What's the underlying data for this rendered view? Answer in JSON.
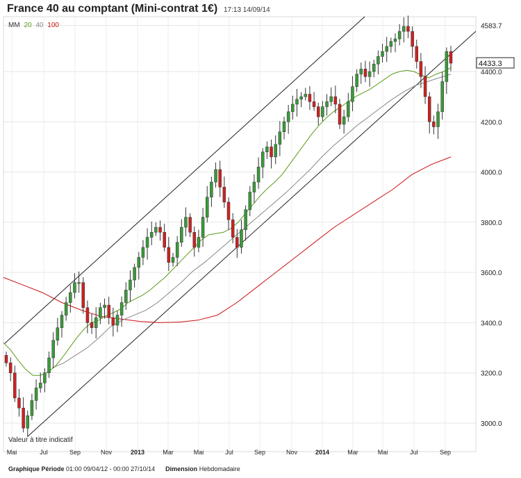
{
  "header": {
    "title": "France 40 au comptant (Mini-contrat 1€)",
    "timestamp": "17:13 14/09/14"
  },
  "legend": {
    "label": "MM",
    "items": [
      {
        "period": "20",
        "color": "#5a9a1a"
      },
      {
        "period": "40",
        "color": "#888888"
      },
      {
        "period": "100",
        "color": "#cc1111"
      }
    ]
  },
  "disclaimer": "Valeur à titre indicatif",
  "footer": {
    "periode_label": "Graphique Période",
    "periode_value": "01:00 09/04/12 - 00:00 27/10/14",
    "dimension_label": "Dimension",
    "dimension_value": "Hebdomadaire"
  },
  "chart_data": {
    "type": "candlestick",
    "y_ticks": [
      "3000.0",
      "3200.0",
      "3400.0",
      "3600.0",
      "3800.0",
      "4000.0",
      "4200.0",
      "4400.0",
      "4583.7"
    ],
    "ylim": [
      2900,
      4640
    ],
    "x_ticks": [
      "Mai",
      "Jul",
      "Sep",
      "Nov",
      "2013",
      "Mar",
      "Mai",
      "Jul",
      "Sep",
      "Nov",
      "2014",
      "Mar",
      "Mai",
      "Jul",
      "Sep"
    ],
    "last_price": "4433.3",
    "up_color": "#3a9a3a",
    "down_color": "#cc2222",
    "weekly_closes": [
      3240,
      3200,
      3100,
      3060,
      2980,
      3030,
      3090,
      3140,
      3160,
      3200,
      3260,
      3330,
      3380,
      3430,
      3480,
      3520,
      3560,
      3560,
      3460,
      3400,
      3380,
      3420,
      3460,
      3470,
      3420,
      3390,
      3430,
      3480,
      3530,
      3570,
      3620,
      3660,
      3700,
      3740,
      3760,
      3780,
      3760,
      3700,
      3640,
      3660,
      3720,
      3780,
      3820,
      3760,
      3700,
      3740,
      3820,
      3900,
      3960,
      4010,
      3940,
      3880,
      3810,
      3740,
      3700,
      3770,
      3850,
      3920,
      3960,
      4020,
      4080,
      4100,
      4060,
      4110,
      4160,
      4200,
      4240,
      4270,
      4290,
      4300,
      4310,
      4280,
      4260,
      4220,
      4260,
      4280,
      4300,
      4270,
      4190,
      4220,
      4280,
      4340,
      4390,
      4410,
      4380,
      4400,
      4430,
      4460,
      4480,
      4500,
      4520,
      4530,
      4560,
      4580,
      4560,
      4500,
      4440,
      4380,
      4300,
      4200,
      4180,
      4240,
      4360,
      4480,
      4433.3
    ],
    "ma20": [
      3320,
      3290,
      3250,
      3215,
      3190,
      3190,
      3202,
      3224,
      3260,
      3300,
      3340,
      3375,
      3400,
      3410,
      3428,
      3440,
      3455,
      3480,
      3495,
      3510,
      3530,
      3555,
      3580,
      3610,
      3640,
      3670,
      3700,
      3730,
      3750,
      3755,
      3760,
      3775,
      3800,
      3835,
      3870,
      3905,
      3935,
      3960,
      3990,
      4030,
      4070,
      4110,
      4150,
      4185,
      4215,
      4240,
      4260,
      4280,
      4300,
      4315,
      4330,
      4350,
      4370,
      4390,
      4400,
      4405,
      4400,
      4385,
      4375,
      4390,
      4400,
      4415
    ],
    "ma40": [
      3220,
      3240,
      3270,
      3300,
      3340,
      3385,
      3410,
      3430,
      3450,
      3480,
      3520,
      3560,
      3605,
      3640,
      3680,
      3720,
      3760,
      3800,
      3840,
      3880,
      3920,
      3965,
      4010,
      4060,
      4105,
      4145,
      4185,
      4220,
      4255,
      4290,
      4320,
      4345,
      4360,
      4375,
      4390
    ],
    "ma100": [
      3580,
      3550,
      3520,
      3480,
      3450,
      3425,
      3415,
      3405,
      3400,
      3402,
      3410,
      3430,
      3480,
      3540,
      3600,
      3660,
      3720,
      3780,
      3830,
      3880,
      3930,
      3990,
      4030,
      4060
    ]
  }
}
